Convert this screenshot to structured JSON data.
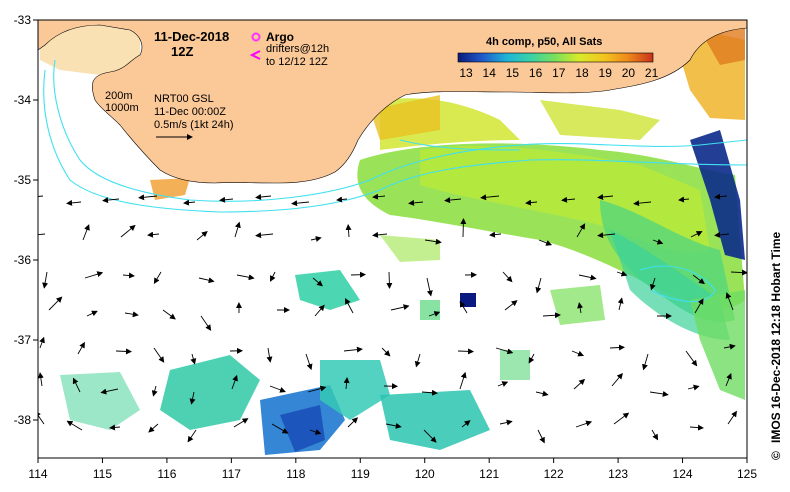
{
  "map": {
    "date_time": "11-Dec-2018",
    "hour": "12Z",
    "legend": {
      "argo_label": "Argo",
      "drifters_label": "drifters@12h",
      "drifters_to_label": "to 12/12 12Z",
      "contour_200": "200m",
      "contour_1000": "1000m",
      "product_label": "NRT00 GSL",
      "product_time": "11-Dec 00:00Z",
      "scale_vector_label": "0.5m/s (1kt 24h)"
    },
    "colorbar": {
      "title": "4h comp, p50, All Sats",
      "ticks": [
        "13",
        "14",
        "15",
        "16",
        "17",
        "18",
        "19",
        "20",
        "21"
      ],
      "colors": [
        "#0a1a7a",
        "#1f57c9",
        "#1fb4d8",
        "#38d1a8",
        "#7be05a",
        "#d8ea2a",
        "#f3c51e",
        "#ee8a1a",
        "#c8321a"
      ]
    },
    "axes": {
      "lon_ticks": [
        "114",
        "115",
        "116",
        "117",
        "118",
        "119",
        "120",
        "121",
        "122",
        "123",
        "124",
        "125"
      ],
      "lat_ticks": [
        "-33",
        "-34",
        "-35",
        "-36",
        "-37",
        "-38"
      ]
    },
    "credit": "IMOS 16-Dec-2018 12:18 Hobart Time",
    "copyright_symbol": "©",
    "colors": {
      "land": "#fbc898",
      "contour": "#40e0f0",
      "argo": "#ff33ff",
      "drifter": "#ff00ff"
    }
  }
}
